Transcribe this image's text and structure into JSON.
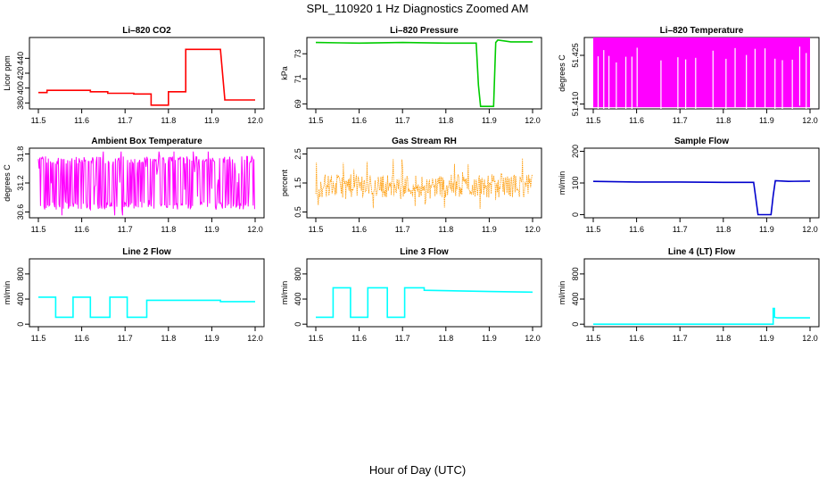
{
  "figure": {
    "title": "SPL_110920  1 Hz Diagnostics Zoomed AM",
    "xlabel": "Hour of Day (UTC)"
  },
  "chart_data": [
    {
      "type": "line",
      "title": "Li–820 CO2",
      "ylabel": "Licor ppm",
      "color": "#ff0000",
      "xlim": [
        11.5,
        12.0
      ],
      "ylim": [
        372,
        468
      ],
      "xticks": [
        "11.5",
        "11.6",
        "11.7",
        "11.8",
        "11.9",
        "12.0"
      ],
      "yticks": [
        {
          "v": 380,
          "label": "380"
        },
        {
          "v": 400,
          "label": "400"
        },
        {
          "v": 420,
          "label": "420"
        },
        {
          "v": 440,
          "label": "440"
        }
      ],
      "x": [
        11.5,
        11.52,
        11.52,
        11.62,
        11.62,
        11.66,
        11.66,
        11.72,
        11.72,
        11.76,
        11.76,
        11.8,
        11.8,
        11.84,
        11.84,
        11.92,
        11.92,
        11.93,
        11.93,
        12.0
      ],
      "y": [
        394,
        394,
        397,
        397,
        395,
        395,
        393,
        393,
        392,
        392,
        377,
        377,
        395,
        395,
        452,
        452,
        452,
        385,
        384,
        384
      ]
    },
    {
      "type": "line",
      "title": "Li–820 Pressure",
      "ylabel": "kPa",
      "color": "#00cc00",
      "xlim": [
        11.5,
        12.0
      ],
      "ylim": [
        68.6,
        74.3
      ],
      "xticks": [
        "11.5",
        "11.6",
        "11.7",
        "11.8",
        "11.9",
        "12.0"
      ],
      "yticks": [
        {
          "v": 69,
          "label": "69"
        },
        {
          "v": 71,
          "label": "71"
        },
        {
          "v": 73,
          "label": "73"
        }
      ],
      "x": [
        11.5,
        11.6,
        11.7,
        11.8,
        11.87,
        11.875,
        11.88,
        11.91,
        11.915,
        11.92,
        11.95,
        12.0
      ],
      "y": [
        73.9,
        73.85,
        73.9,
        73.85,
        73.85,
        70.5,
        68.8,
        68.8,
        73.9,
        74.1,
        73.95,
        73.95
      ]
    },
    {
      "type": "line",
      "title": "Li–820 Temperature",
      "ylabel": "degrees C",
      "color": "#ff00ff",
      "xlim": [
        11.5,
        12.0
      ],
      "ylim": [
        51.4085,
        51.4305
      ],
      "xticks": [
        "11.5",
        "11.6",
        "11.7",
        "11.8",
        "11.9",
        "12.0"
      ],
      "yticks": [
        {
          "v": 51.41,
          "label": "51.410"
        },
        {
          "v": 51.425,
          "label": "51.425"
        }
      ],
      "low": 51.409,
      "high": 51.4305,
      "gaps_x": [
        11.51,
        11.523,
        11.535,
        11.552,
        11.574,
        11.588,
        11.6,
        11.655,
        11.694,
        11.712,
        11.735,
        11.775,
        11.805,
        11.826,
        11.852,
        11.872,
        11.895,
        11.918,
        11.935,
        11.958,
        11.975,
        11.99
      ]
    },
    {
      "type": "line",
      "title": "Ambient Box Temperature",
      "ylabel": "degrees C",
      "color": "#ff00ff",
      "xlim": [
        11.5,
        12.0
      ],
      "ylim": [
        30.48,
        31.92
      ],
      "xticks": [
        "11.5",
        "11.6",
        "11.7",
        "11.8",
        "11.9",
        "12.0"
      ],
      "yticks": [
        {
          "v": 30.6,
          "label": "30.6"
        },
        {
          "v": 31.2,
          "label": "31.2"
        },
        {
          "v": 31.8,
          "label": "31.8"
        }
      ],
      "low": 30.65,
      "high": 31.75,
      "mid": 31.2
    },
    {
      "type": "scatter",
      "title": "Gas Stream RH",
      "ylabel": "percent",
      "color": "#ff9900",
      "xlim": [
        11.5,
        12.0
      ],
      "ylim": [
        0.3,
        2.7
      ],
      "xticks": [
        "11.5",
        "11.6",
        "11.7",
        "11.8",
        "11.9",
        "12.0"
      ],
      "yticks": [
        {
          "v": 0.5,
          "label": "0.5"
        },
        {
          "v": 1.5,
          "label": "1.5"
        },
        {
          "v": 2.5,
          "label": "2.5"
        }
      ],
      "low": 1.0,
      "high": 1.8,
      "spike_max": 2.6,
      "spike_min": 0.5
    },
    {
      "type": "line",
      "title": "Sample Flow",
      "ylabel": "ml/min",
      "color": "#0000cc",
      "xlim": [
        11.5,
        12.0
      ],
      "ylim": [
        -10,
        210
      ],
      "xticks": [
        "11.5",
        "11.6",
        "11.7",
        "11.8",
        "11.9",
        "12.0"
      ],
      "yticks": [
        {
          "v": 0,
          "label": "0"
        },
        {
          "v": 100,
          "label": "100"
        },
        {
          "v": 200,
          "label": "200"
        }
      ],
      "x": [
        11.5,
        11.6,
        11.7,
        11.8,
        11.87,
        11.875,
        11.88,
        11.91,
        11.915,
        11.92,
        11.95,
        12.0
      ],
      "y": [
        105,
        103,
        103,
        102,
        102,
        50,
        0,
        0,
        60,
        107,
        105,
        106
      ]
    },
    {
      "type": "line",
      "title": "Line 2 Flow",
      "ylabel": "ml/min",
      "color": "#00ffff",
      "xlim": [
        11.5,
        12.0
      ],
      "ylim": [
        -40,
        1040
      ],
      "xticks": [
        "11.5",
        "11.6",
        "11.7",
        "11.8",
        "11.9",
        "12.0"
      ],
      "yticks": [
        {
          "v": 0,
          "label": "0"
        },
        {
          "v": 400,
          "label": "400"
        },
        {
          "v": 800,
          "label": "800"
        }
      ],
      "x": [
        11.5,
        11.54,
        11.54,
        11.58,
        11.58,
        11.62,
        11.62,
        11.665,
        11.665,
        11.705,
        11.705,
        11.75,
        11.75,
        11.92,
        11.92,
        12.0
      ],
      "y": [
        430,
        430,
        110,
        110,
        430,
        430,
        110,
        110,
        430,
        430,
        110,
        110,
        380,
        380,
        360,
        360
      ]
    },
    {
      "type": "line",
      "title": "Line 3 Flow",
      "ylabel": "ml/min",
      "color": "#00ffff",
      "xlim": [
        11.5,
        12.0
      ],
      "ylim": [
        -40,
        1040
      ],
      "xticks": [
        "11.5",
        "11.6",
        "11.7",
        "11.8",
        "11.9",
        "12.0"
      ],
      "yticks": [
        {
          "v": 0,
          "label": "0"
        },
        {
          "v": 400,
          "label": "400"
        },
        {
          "v": 800,
          "label": "800"
        }
      ],
      "x": [
        11.5,
        11.54,
        11.54,
        11.58,
        11.58,
        11.62,
        11.62,
        11.665,
        11.665,
        11.705,
        11.705,
        11.75,
        11.75,
        11.9,
        12.0
      ],
      "y": [
        110,
        110,
        580,
        580,
        110,
        110,
        580,
        580,
        110,
        110,
        580,
        580,
        540,
        520,
        510
      ]
    },
    {
      "type": "line",
      "title": "Line 4 (LT) Flow",
      "ylabel": "ml/min",
      "color": "#00ffff",
      "xlim": [
        11.5,
        12.0
      ],
      "ylim": [
        -40,
        1040
      ],
      "xticks": [
        "11.5",
        "11.6",
        "11.7",
        "11.8",
        "11.9",
        "12.0"
      ],
      "yticks": [
        {
          "v": 0,
          "label": "0"
        },
        {
          "v": 400,
          "label": "400"
        },
        {
          "v": 800,
          "label": "800"
        }
      ],
      "x": [
        11.5,
        11.915,
        11.915,
        11.918,
        11.918,
        11.925,
        12.0
      ],
      "y": [
        0,
        0,
        250,
        250,
        110,
        100,
        100
      ]
    }
  ]
}
